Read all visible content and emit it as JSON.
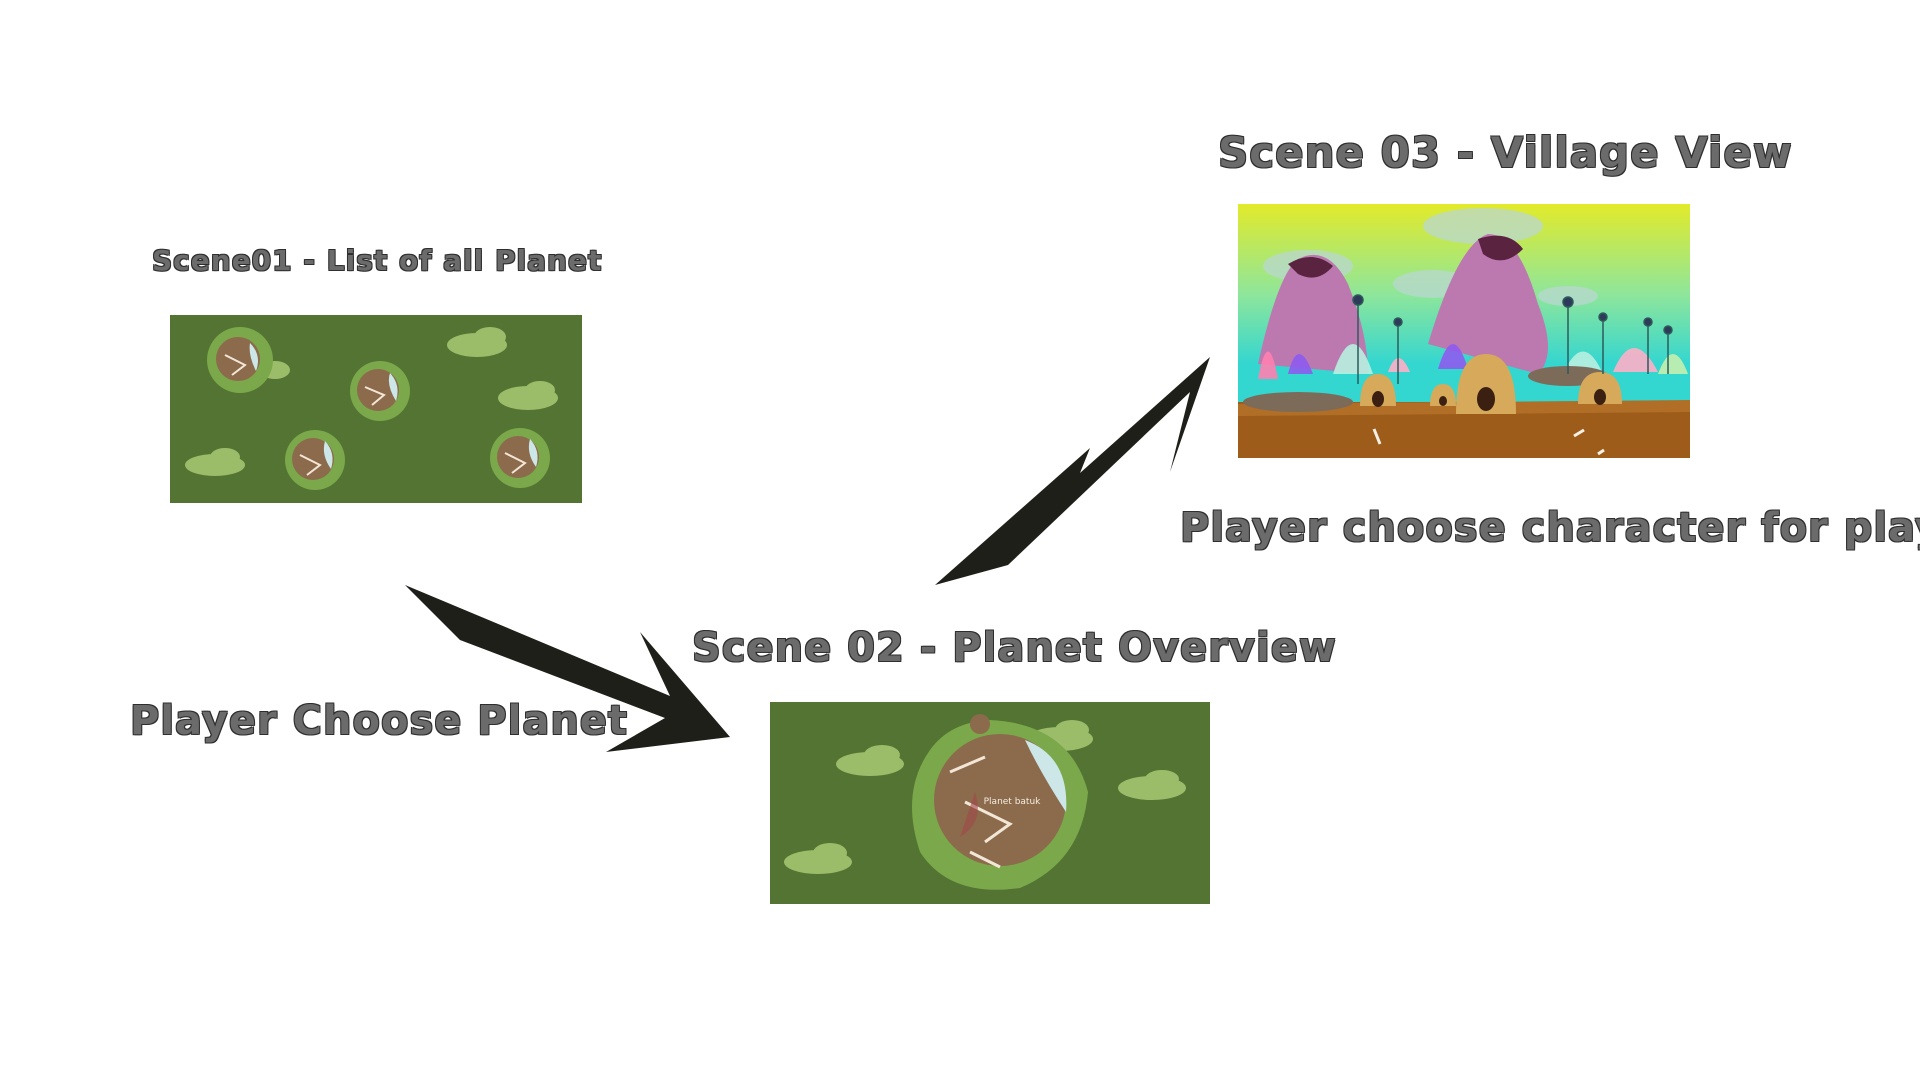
{
  "labels": {
    "scene01_title": "Scene01 - List of all Planet",
    "scene02_title": "Scene 02 - Planet Overview",
    "scene03_title": "Scene 03 - Village View",
    "step1_caption": "Player Choose Planet",
    "step2_caption": "Player choose character for play"
  },
  "scene02": {
    "planet_name": "Planet batuk"
  },
  "colors": {
    "scene_green": "#537432",
    "cloud_green": "#9bbd6a",
    "planet_ring": "#7aa84a",
    "planet_brown": "#8c6a4c",
    "arrow": "#1f1f1a",
    "label_text": "#6b6b6b"
  }
}
